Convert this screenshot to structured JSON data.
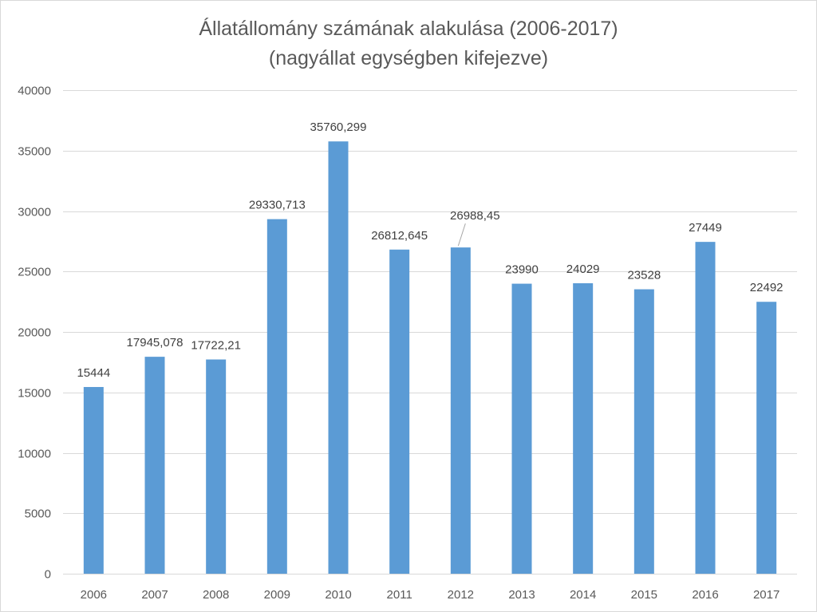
{
  "chart_data": {
    "type": "bar",
    "title": "Állatállomány számának alakulása (2006-2017)",
    "subtitle": "(nagyállat egységben kifejezve)",
    "xlabel": "",
    "ylabel": "",
    "categories": [
      "2006",
      "2007",
      "2008",
      "2009",
      "2010",
      "2011",
      "2012",
      "2013",
      "2014",
      "2015",
      "2016",
      "2017"
    ],
    "values": [
      15444,
      17945.078,
      17722.21,
      29330.713,
      35760.299,
      26812.645,
      26988.45,
      23990,
      24029,
      23528,
      27449,
      22492
    ],
    "data_labels": [
      "15444",
      "17945,078",
      "17722,21",
      "29330,713",
      "35760,299",
      "26812,645",
      "26988,45",
      "23990",
      "24029",
      "23528",
      "27449",
      "22492"
    ],
    "ylim": [
      0,
      40000
    ],
    "yticks": [
      0,
      5000,
      10000,
      15000,
      20000,
      25000,
      30000,
      35000,
      40000
    ],
    "ytick_labels": [
      "0",
      "5000",
      "10000",
      "15000",
      "20000",
      "25000",
      "30000",
      "35000",
      "40000"
    ],
    "grid": true,
    "legend": "none",
    "bar_color": "#5b9bd5",
    "grid_color": "#d9d9d9"
  }
}
